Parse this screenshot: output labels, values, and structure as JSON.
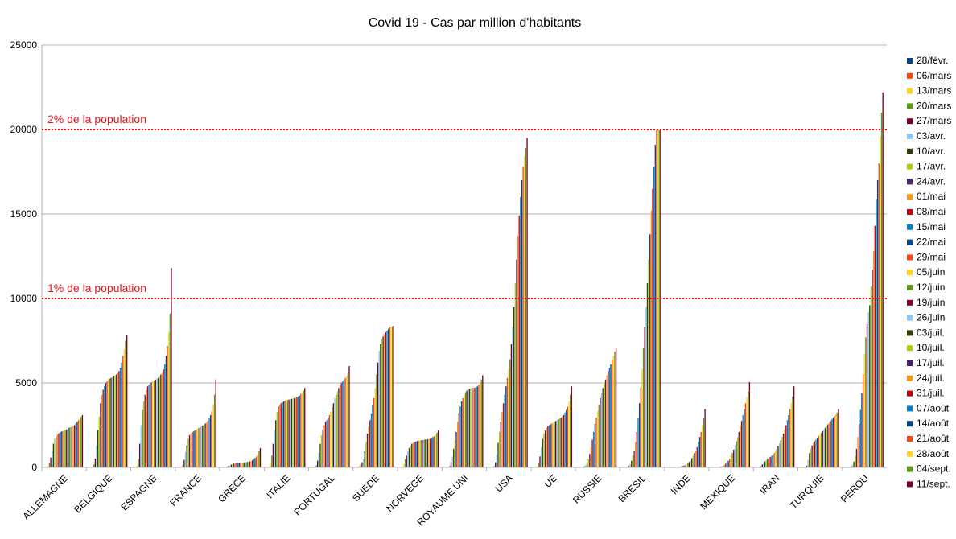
{
  "chart_data": {
    "type": "bar",
    "title": "Covid 19 - Cas par million d'habitants",
    "xlabel": "",
    "ylabel": "",
    "ylim": [
      0,
      25000
    ],
    "yticks": [
      "0",
      "5000",
      "10000",
      "15000",
      "20000",
      "25000"
    ],
    "grid": true,
    "legend_position": "right",
    "categories": [
      "ALLEMAGNE",
      "BELGIQUE",
      "ESPAGNE",
      "FRANCE",
      "GRECE",
      "ITALIE",
      "PORTUGAL",
      "SUEDE",
      "NORVEGE",
      "ROYAUME UNI",
      "USA",
      "UE",
      "RUSSIE",
      "BRESIL",
      "INDE",
      "MEXIQUE",
      "IRAN",
      "TURQUIE",
      "PEROU"
    ],
    "series_names": [
      "28/févr.",
      "06/mars",
      "13/mars",
      "20/mars",
      "27/mars",
      "03/avr.",
      "10/avr.",
      "17/avr.",
      "24/avr.",
      "01/mai",
      "08/mai",
      "15/mai",
      "22/mai",
      "29/mai",
      "05/juin",
      "12/juin",
      "19/juin",
      "26/juin",
      "03/juil.",
      "10/juil.",
      "17/juil.",
      "24/juil.",
      "31/juil.",
      "07/août",
      "14/août",
      "21/août",
      "28/août",
      "04/sept.",
      "11/sept."
    ],
    "series_colors": [
      "#004586",
      "#ff420e",
      "#ffd320",
      "#579d1c",
      "#7e0021",
      "#83caff",
      "#314004",
      "#aecf00",
      "#4b1f6f",
      "#ff950e",
      "#c5000b",
      "#0084d1",
      "#004586",
      "#ff420e",
      "#ffd320",
      "#579d1c",
      "#7e0021",
      "#83caff",
      "#314004",
      "#aecf00",
      "#4b1f6f",
      "#ff950e",
      "#c5000b",
      "#0084d1",
      "#004586",
      "#ff420e",
      "#ffd320",
      "#579d1c",
      "#7e0021"
    ],
    "values_by_category": [
      [
        0,
        10,
        80,
        270,
        590,
        950,
        1400,
        1700,
        1850,
        1950,
        2020,
        2080,
        2120,
        2150,
        2180,
        2220,
        2250,
        2300,
        2350,
        2380,
        2400,
        2450,
        2500,
        2600,
        2700,
        2800,
        2900,
        3000,
        3100
      ],
      [
        0,
        10,
        50,
        180,
        520,
        1300,
        2200,
        3000,
        3800,
        4300,
        4600,
        4800,
        5000,
        5100,
        5200,
        5250,
        5300,
        5350,
        5400,
        5450,
        5500,
        5600,
        5700,
        5900,
        6200,
        6600,
        7000,
        7500,
        7850
      ],
      [
        0,
        10,
        120,
        500,
        1400,
        2500,
        3400,
        3900,
        4300,
        4600,
        4800,
        4900,
        5000,
        5050,
        5100,
        5150,
        5200,
        5250,
        5300,
        5400,
        5500,
        5600,
        5800,
        6100,
        6600,
        7200,
        8000,
        9100,
        11800
      ],
      [
        0,
        5,
        30,
        150,
        450,
        900,
        1300,
        1700,
        1900,
        2000,
        2080,
        2130,
        2180,
        2230,
        2280,
        2330,
        2380,
        2430,
        2480,
        2530,
        2600,
        2650,
        2750,
        2900,
        3100,
        3300,
        3700,
        4300,
        5200
      ],
      [
        0,
        5,
        20,
        50,
        90,
        130,
        170,
        200,
        220,
        240,
        260,
        270,
        275,
        280,
        285,
        290,
        300,
        310,
        320,
        330,
        350,
        380,
        420,
        480,
        560,
        650,
        800,
        1000,
        1150
      ],
      [
        0,
        30,
        200,
        700,
        1400,
        2200,
        2800,
        3300,
        3600,
        3700,
        3800,
        3850,
        3900,
        3950,
        3980,
        4000,
        4020,
        4040,
        4060,
        4080,
        4100,
        4130,
        4160,
        4200,
        4250,
        4350,
        4450,
        4550,
        4700
      ],
      [
        0,
        0,
        20,
        120,
        400,
        850,
        1400,
        1900,
        2250,
        2500,
        2700,
        2800,
        2950,
        3100,
        3300,
        3550,
        3800,
        4100,
        4300,
        4500,
        4700,
        4850,
        5000,
        5100,
        5200,
        5300,
        5400,
        5600,
        6000
      ],
      [
        0,
        30,
        90,
        180,
        300,
        500,
        950,
        1500,
        2000,
        2400,
        2800,
        3200,
        3700,
        4100,
        4700,
        5500,
        6200,
        6900,
        7300,
        7600,
        7750,
        7900,
        8000,
        8100,
        8200,
        8280,
        8330,
        8350,
        8380
      ],
      [
        0,
        10,
        200,
        500,
        700,
        1000,
        1150,
        1300,
        1400,
        1450,
        1500,
        1530,
        1560,
        1580,
        1600,
        1610,
        1620,
        1640,
        1650,
        1660,
        1670,
        1680,
        1700,
        1750,
        1800,
        1850,
        1950,
        2050,
        2200
      ],
      [
        0,
        5,
        20,
        90,
        300,
        650,
        1100,
        1600,
        2100,
        2700,
        3200,
        3600,
        3900,
        4100,
        4300,
        4450,
        4550,
        4620,
        4650,
        4680,
        4700,
        4710,
        4720,
        4750,
        4800,
        4900,
        5000,
        5200,
        5450
      ],
      [
        0,
        5,
        15,
        70,
        300,
        750,
        1450,
        2100,
        2700,
        3300,
        3800,
        4300,
        4800,
        5300,
        5850,
        6400,
        7300,
        8300,
        9500,
        10900,
        12300,
        13700,
        14900,
        16000,
        17000,
        17800,
        18400,
        18900,
        19500
      ],
      [
        0,
        5,
        60,
        250,
        650,
        1200,
        1700,
        2000,
        2200,
        2350,
        2450,
        2500,
        2550,
        2600,
        2650,
        2700,
        2750,
        2800,
        2850,
        2900,
        2950,
        3000,
        3100,
        3250,
        3400,
        3600,
        3900,
        4300,
        4800
      ],
      [
        0,
        0,
        5,
        20,
        60,
        150,
        300,
        500,
        800,
        1200,
        1650,
        2100,
        2550,
        2950,
        3350,
        3700,
        4100,
        4400,
        4700,
        4950,
        5200,
        5450,
        5700,
        5900,
        6100,
        6350,
        6600,
        6850,
        7100
      ],
      [
        0,
        0,
        5,
        20,
        80,
        200,
        400,
        700,
        1000,
        1500,
        2100,
        2900,
        3800,
        4700,
        5800,
        7100,
        8300,
        9500,
        10900,
        12300,
        13800,
        15200,
        16500,
        17800,
        19100,
        20000,
        20000,
        20000,
        20000
      ],
      [
        0,
        0,
        0,
        0,
        5,
        10,
        20,
        30,
        40,
        50,
        60,
        80,
        100,
        130,
        180,
        240,
        320,
        420,
        550,
        700,
        850,
        1000,
        1200,
        1500,
        1800,
        2100,
        2500,
        2900,
        3450
      ],
      [
        0,
        0,
        0,
        5,
        10,
        20,
        40,
        70,
        110,
        160,
        220,
        300,
        400,
        520,
        680,
        860,
        1050,
        1300,
        1550,
        1800,
        2100,
        2450,
        2750,
        3100,
        3450,
        3800,
        4150,
        4500,
        5050
      ],
      [
        0,
        0,
        20,
        80,
        180,
        270,
        350,
        420,
        500,
        560,
        620,
        680,
        760,
        850,
        950,
        1100,
        1260,
        1420,
        1600,
        1800,
        2000,
        2250,
        2500,
        2800,
        3100,
        3450,
        3800,
        4200,
        4800
      ],
      [
        0,
        0,
        0,
        10,
        100,
        450,
        850,
        1100,
        1300,
        1450,
        1550,
        1650,
        1750,
        1850,
        1950,
        2050,
        2150,
        2250,
        2350,
        2450,
        2550,
        2650,
        2750,
        2850,
        2950,
        3050,
        3150,
        3250,
        3450
      ],
      [
        0,
        0,
        5,
        20,
        60,
        150,
        350,
        650,
        1100,
        1800,
        2600,
        3400,
        4400,
        5500,
        6700,
        7700,
        8500,
        9200,
        9600,
        10700,
        11700,
        12800,
        14300,
        15900,
        17000,
        18000,
        19600,
        21000,
        22200
      ]
    ],
    "annotations": [
      {
        "text": "2% de la population",
        "value": 20000,
        "color": "#e8141b"
      },
      {
        "text": "1% de la population",
        "value": 10000,
        "color": "#e8141b"
      }
    ]
  }
}
